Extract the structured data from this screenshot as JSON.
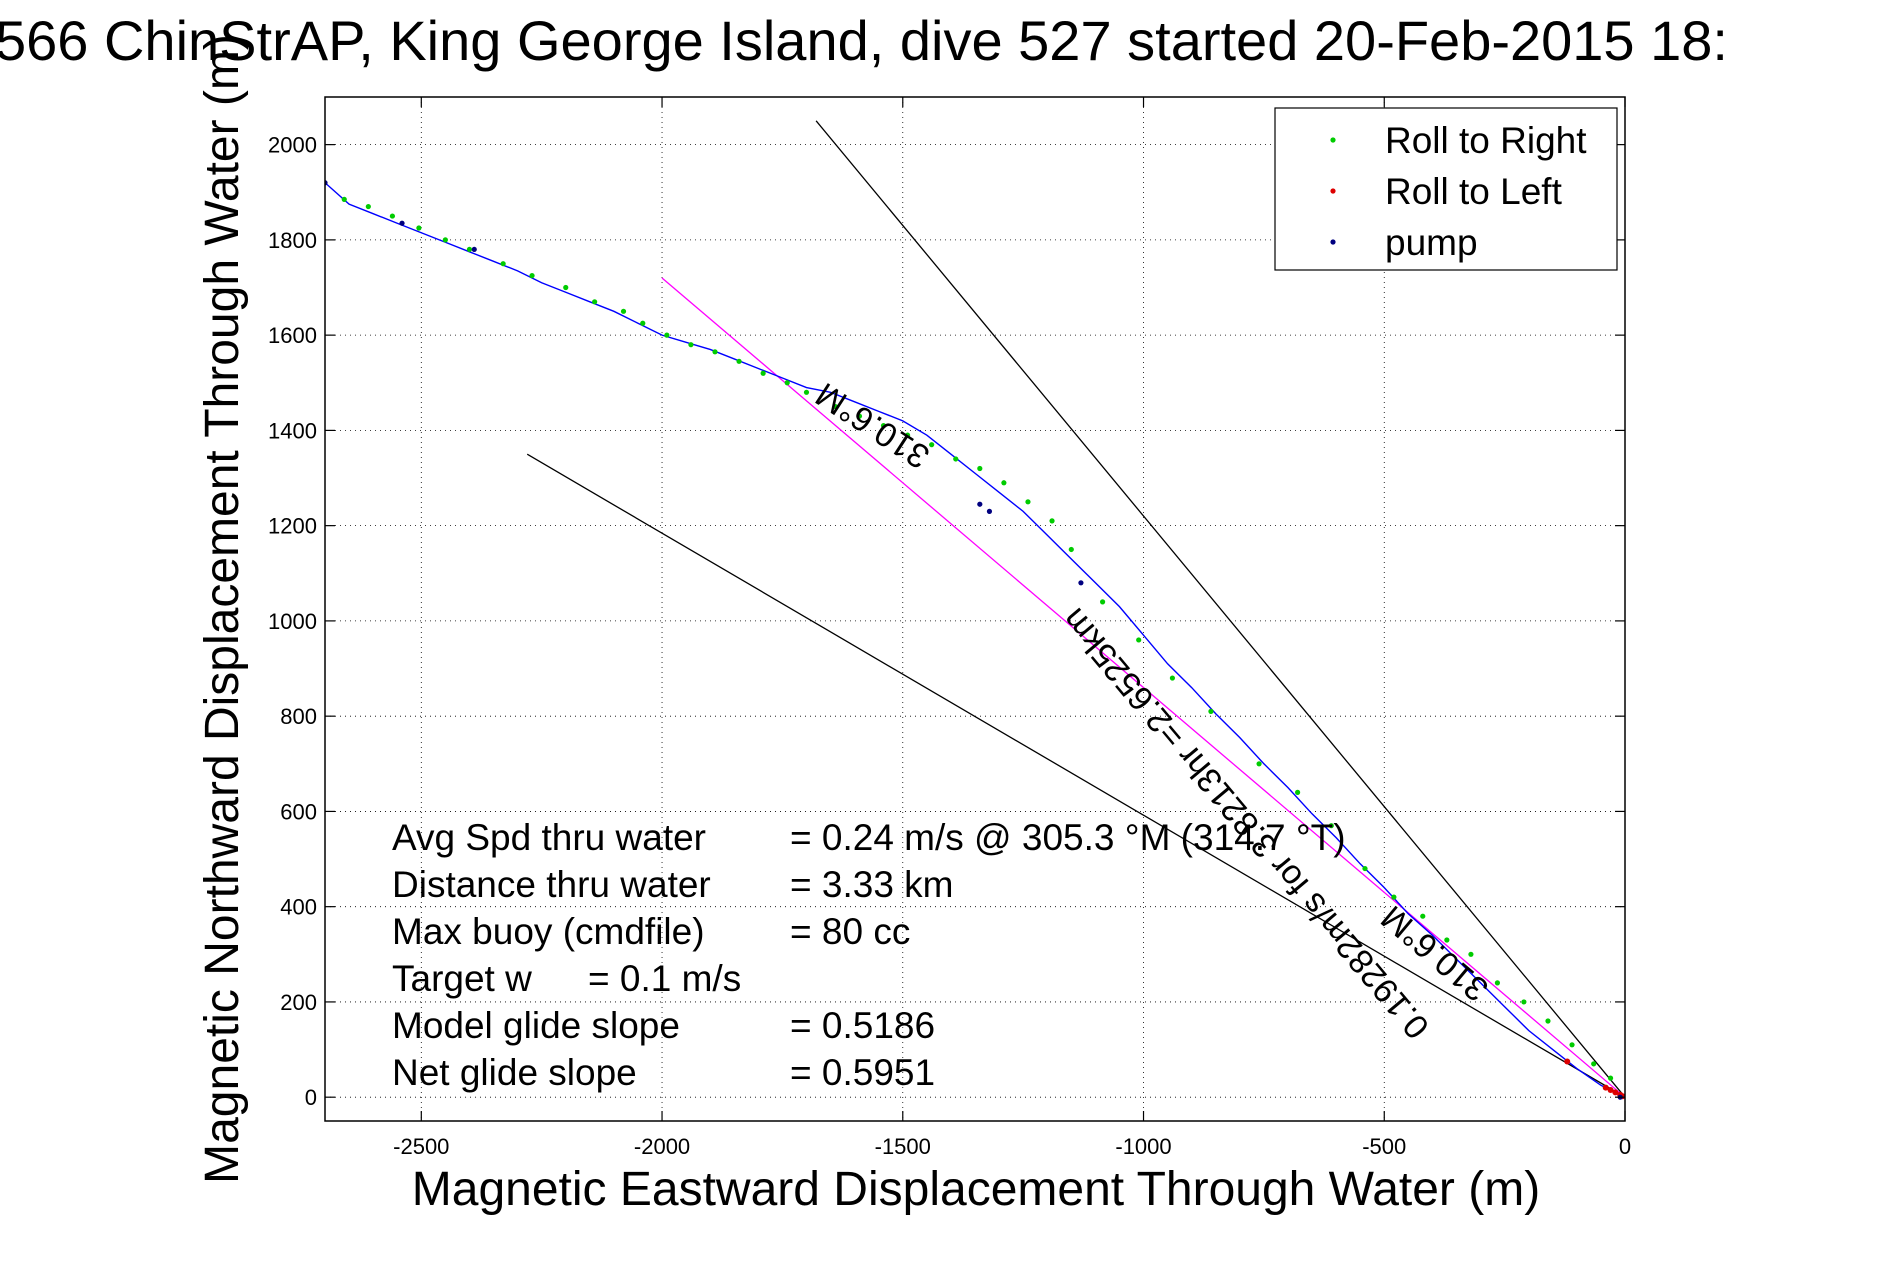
{
  "chart_data": {
    "type": "line",
    "title": "566 ChinStrAP, King George Island, dive 527 started 20-Feb-2015 18:",
    "xlabel": "Magnetic Eastward Displacement Through Water (m)",
    "ylabel": "Magnetic Northward Displacement Through Water (m)",
    "xlim": [
      -2700,
      0
    ],
    "ylim": [
      -50,
      2100
    ],
    "xticks": [
      -2500,
      -2000,
      -1500,
      -1000,
      -500,
      0
    ],
    "yticks": [
      0,
      200,
      400,
      600,
      800,
      1000,
      1200,
      1400,
      1600,
      1800,
      2000
    ],
    "grid": true,
    "legend_placement": "top-right",
    "legend": [
      {
        "label": "Roll to Right",
        "color": "#00cc00"
      },
      {
        "label": "Roll to Left",
        "color": "#dd0000"
      },
      {
        "label": "pump",
        "color": "#000080"
      }
    ],
    "track": {
      "color": "#0000ff",
      "x": [
        0,
        -50,
        -100,
        -150,
        -200,
        -250,
        -300,
        -350,
        -400,
        -450,
        -500,
        -550,
        -600,
        -650,
        -700,
        -750,
        -800,
        -850,
        -900,
        -950,
        -1000,
        -1050,
        -1100,
        -1150,
        -1200,
        -1250,
        -1300,
        -1350,
        -1400,
        -1450,
        -1500,
        -1550,
        -1600,
        -1650,
        -1700,
        -1750,
        -1800,
        -1850,
        -1900,
        -1950,
        -2000,
        -2050,
        -2100,
        -2150,
        -2200,
        -2250,
        -2300,
        -2350,
        -2400,
        -2450,
        -2500,
        -2550,
        -2600,
        -2650,
        -2700
      ],
      "y": [
        0,
        25,
        60,
        100,
        140,
        190,
        240,
        290,
        340,
        385,
        440,
        490,
        545,
        595,
        650,
        700,
        755,
        805,
        860,
        910,
        970,
        1030,
        1080,
        1130,
        1180,
        1230,
        1270,
        1310,
        1350,
        1390,
        1420,
        1440,
        1460,
        1480,
        1490,
        1510,
        1530,
        1550,
        1570,
        1585,
        1600,
        1625,
        1650,
        1670,
        1690,
        1710,
        1735,
        1755,
        1775,
        1795,
        1815,
        1835,
        1855,
        1875,
        1920
      ]
    },
    "roll_right_points": {
      "x": [
        -2660,
        -2610,
        -2560,
        -2505,
        -2450,
        -2400,
        -2330,
        -2270,
        -2200,
        -2140,
        -2080,
        -2040,
        -1990,
        -1940,
        -1890,
        -1840,
        -1790,
        -1740,
        -1700,
        -1640,
        -1590,
        -1540,
        -1490,
        -1440,
        -1390,
        -1340,
        -1290,
        -1240,
        -1190,
        -1150,
        -1085,
        -1010,
        -940,
        -860,
        -760,
        -680,
        -610,
        -540,
        -480,
        -420,
        -370,
        -320,
        -265,
        -210,
        -160,
        -110,
        -65,
        -30
      ],
      "y": [
        1885,
        1870,
        1850,
        1825,
        1800,
        1780,
        1750,
        1725,
        1700,
        1670,
        1650,
        1625,
        1600,
        1580,
        1565,
        1545,
        1520,
        1500,
        1480,
        1450,
        1430,
        1410,
        1390,
        1370,
        1340,
        1320,
        1290,
        1250,
        1210,
        1150,
        1040,
        960,
        880,
        810,
        700,
        640,
        570,
        480,
        420,
        380,
        330,
        300,
        240,
        200,
        160,
        110,
        70,
        40
      ]
    },
    "roll_left_points": {
      "x": [
        -120,
        -40,
        -30,
        -20,
        -10,
        -5
      ],
      "y": [
        75,
        20,
        15,
        10,
        5,
        2
      ]
    },
    "pump_points": {
      "x": [
        -2700,
        -2540,
        -2390,
        -1340,
        -1320,
        -1130,
        -10
      ],
      "y": [
        1920,
        1835,
        1780,
        1245,
        1230,
        1080,
        0
      ]
    },
    "guide_lines": [
      {
        "name": "upper-heading-line",
        "color": "#000000",
        "x": [
          0,
          -1680
        ],
        "y": [
          0,
          2050
        ]
      },
      {
        "name": "lower-heading-line",
        "color": "#000000",
        "x": [
          0,
          -2280
        ],
        "y": [
          0,
          1350
        ]
      },
      {
        "name": "model-track-line",
        "color": "#ff00ff",
        "x": [
          0,
          -2000
        ],
        "y": [
          0,
          1720
        ]
      }
    ],
    "annotations": [
      {
        "text": "310.6°M",
        "x": -1550,
        "y": 1430,
        "rotation": 33
      },
      {
        "text": "0.19282m/s for 3.8213hr =2.6525km",
        "x": -770,
        "y": 590,
        "rotation": 50
      },
      {
        "text": "310.6°M",
        "x": -380,
        "y": 320,
        "rotation": 40
      }
    ],
    "stats": [
      {
        "label": "Avg Spd thru water",
        "value": "=  0.24 m/s @ 305.3 °M (314.7 °T)"
      },
      {
        "label": "Distance thru water",
        "value": "=  3.33 km"
      },
      {
        "label": "Max buoy (cmdfile)",
        "value": "= 80 cc"
      },
      {
        "label": "Target w",
        "value": "= 0.1 m/s"
      },
      {
        "label": "Model glide slope",
        "value": "= 0.5186"
      },
      {
        "label": "Net glide slope",
        "value": "= 0.5951"
      }
    ]
  }
}
